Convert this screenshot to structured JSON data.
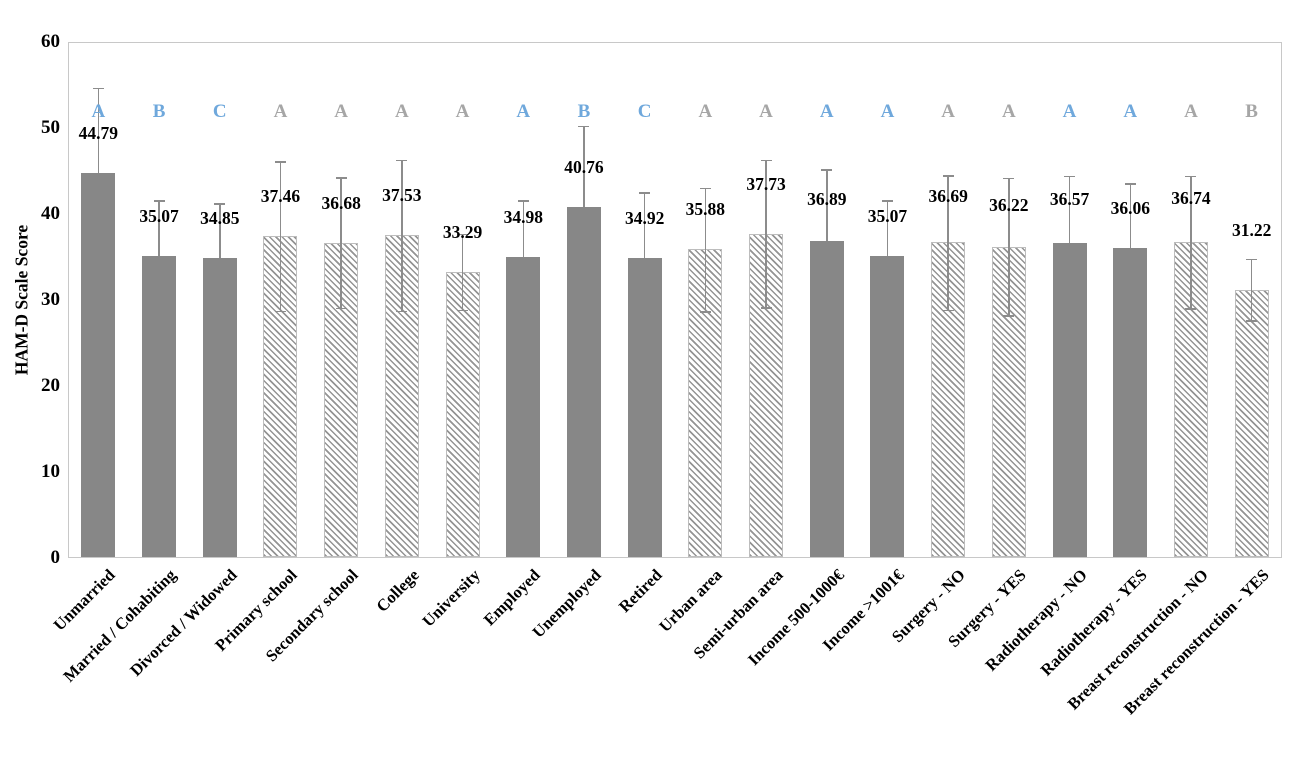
{
  "chart_data": {
    "type": "bar",
    "title": "",
    "xlabel": "",
    "ylabel": "HAM-D Scale Score",
    "ylim": [
      0,
      60
    ],
    "yticks": [
      0,
      10,
      20,
      30,
      40,
      50,
      60
    ],
    "grid": false,
    "legend": false,
    "categories": [
      "Unmarried",
      "Married / Cohabiting",
      "Divorced / Widowed",
      "Primary school",
      "Secondary school",
      "College",
      "University",
      "Employed",
      "Unemployed",
      "Retired",
      "Urban area",
      "Semi-urban area",
      "Income 500-1000€",
      "Income >1001€",
      "Surgery - NO",
      "Surgery - YES",
      "Radiotherapy - NO",
      "Radiotherapy - YES",
      "Breast reconstruction - NO",
      "Breast reconstruction - YES"
    ],
    "values": [
      44.79,
      35.07,
      34.85,
      37.46,
      36.68,
      37.53,
      33.29,
      34.98,
      40.76,
      34.92,
      35.88,
      37.73,
      36.89,
      35.07,
      36.69,
      36.22,
      36.57,
      36.06,
      36.74,
      31.22
    ],
    "bars": [
      {
        "label": "Unmarried",
        "value": 44.79,
        "value_text": "44.79",
        "sd": 9.9,
        "letter": "A",
        "letter_color": "blue",
        "fill": "solid",
        "lower_whisker_visible": false,
        "label_offset": 30
      },
      {
        "label": "Married / Cohabiting",
        "value": 35.07,
        "value_text": "35.07",
        "sd": 6.5,
        "letter": "B",
        "letter_color": "blue",
        "fill": "solid",
        "lower_whisker_visible": false,
        "label_offset": 30
      },
      {
        "label": "Divorced / Widowed",
        "value": 34.85,
        "value_text": "34.85",
        "sd": 6.4,
        "letter": "C",
        "letter_color": "blue",
        "fill": "solid",
        "lower_whisker_visible": false,
        "label_offset": 30
      },
      {
        "label": "Primary school",
        "value": 37.46,
        "value_text": "37.46",
        "sd": 8.7,
        "letter": "A",
        "letter_color": "gray",
        "fill": "hatch",
        "lower_whisker_visible": true,
        "label_offset": 30
      },
      {
        "label": "Secondary school",
        "value": 36.68,
        "value_text": "36.68",
        "sd": 7.6,
        "letter": "A",
        "letter_color": "gray",
        "fill": "hatch",
        "lower_whisker_visible": true,
        "label_offset": 30
      },
      {
        "label": "College",
        "value": 37.53,
        "value_text": "37.53",
        "sd": 8.8,
        "letter": "A",
        "letter_color": "gray",
        "fill": "hatch",
        "lower_whisker_visible": true,
        "label_offset": 30
      },
      {
        "label": "University",
        "value": 33.29,
        "value_text": "33.29",
        "sd": 4.4,
        "letter": "A",
        "letter_color": "gray",
        "fill": "hatch",
        "lower_whisker_visible": true,
        "label_offset": 30
      },
      {
        "label": "Employed",
        "value": 34.98,
        "value_text": "34.98",
        "sd": 6.6,
        "letter": "A",
        "letter_color": "blue",
        "fill": "solid",
        "lower_whisker_visible": false,
        "label_offset": 30
      },
      {
        "label": "Unemployed",
        "value": 40.76,
        "value_text": "40.76",
        "sd": 9.5,
        "letter": "B",
        "letter_color": "blue",
        "fill": "solid",
        "lower_whisker_visible": false,
        "label_offset": 30
      },
      {
        "label": "Retired",
        "value": 34.92,
        "value_text": "34.92",
        "sd": 7.6,
        "letter": "C",
        "letter_color": "blue",
        "fill": "solid",
        "lower_whisker_visible": false,
        "label_offset": 30
      },
      {
        "label": "Urban area",
        "value": 35.88,
        "value_text": "35.88",
        "sd": 7.2,
        "letter": "A",
        "letter_color": "gray",
        "fill": "hatch",
        "lower_whisker_visible": true,
        "label_offset": 30
      },
      {
        "label": "Semi-urban area",
        "value": 37.73,
        "value_text": "37.73",
        "sd": 8.6,
        "letter": "A",
        "letter_color": "gray",
        "fill": "hatch",
        "lower_whisker_visible": true,
        "label_offset": 40
      },
      {
        "label": "Income 500-1000€",
        "value": 36.89,
        "value_text": "36.89",
        "sd": 8.3,
        "letter": "A",
        "letter_color": "blue",
        "fill": "solid",
        "lower_whisker_visible": false,
        "label_offset": 32
      },
      {
        "label": "Income >1001€",
        "value": 35.07,
        "value_text": "35.07",
        "sd": 6.5,
        "letter": "A",
        "letter_color": "blue",
        "fill": "solid",
        "lower_whisker_visible": false,
        "label_offset": 30
      },
      {
        "label": "Surgery - NO",
        "value": 36.69,
        "value_text": "36.69",
        "sd": 7.8,
        "letter": "A",
        "letter_color": "gray",
        "fill": "hatch",
        "lower_whisker_visible": true,
        "label_offset": 36
      },
      {
        "label": "Surgery - YES",
        "value": 36.22,
        "value_text": "36.22",
        "sd": 8.0,
        "letter": "A",
        "letter_color": "gray",
        "fill": "hatch",
        "lower_whisker_visible": true,
        "label_offset": 32
      },
      {
        "label": "Radiotherapy - NO",
        "value": 36.57,
        "value_text": "36.57",
        "sd": 7.9,
        "letter": "A",
        "letter_color": "blue",
        "fill": "solid",
        "lower_whisker_visible": false,
        "label_offset": 34
      },
      {
        "label": "Radiotherapy - YES",
        "value": 36.06,
        "value_text": "36.06",
        "sd": 7.5,
        "letter": "A",
        "letter_color": "blue",
        "fill": "solid",
        "lower_whisker_visible": false,
        "label_offset": 30
      },
      {
        "label": "Breast reconstruction - NO",
        "value": 36.74,
        "value_text": "36.74",
        "sd": 7.7,
        "letter": "A",
        "letter_color": "gray",
        "fill": "hatch",
        "lower_whisker_visible": true,
        "label_offset": 34
      },
      {
        "label": "Breast reconstruction - YES",
        "value": 31.22,
        "value_text": "31.22",
        "sd": 3.6,
        "letter": "B",
        "letter_color": "gray",
        "fill": "hatch",
        "lower_whisker_visible": true,
        "label_offset": 50
      }
    ]
  },
  "style": {
    "background": "#ffffff",
    "plot_border": "#c8c8c8",
    "bar_fill": "#878787",
    "hatch_stripe": "#949494",
    "hatch_background": "#ffffff",
    "whisker": "#8c8c8c",
    "letter_blue": "#6fa8dc",
    "letter_gray": "#a6a6a6",
    "text": "#000000"
  }
}
